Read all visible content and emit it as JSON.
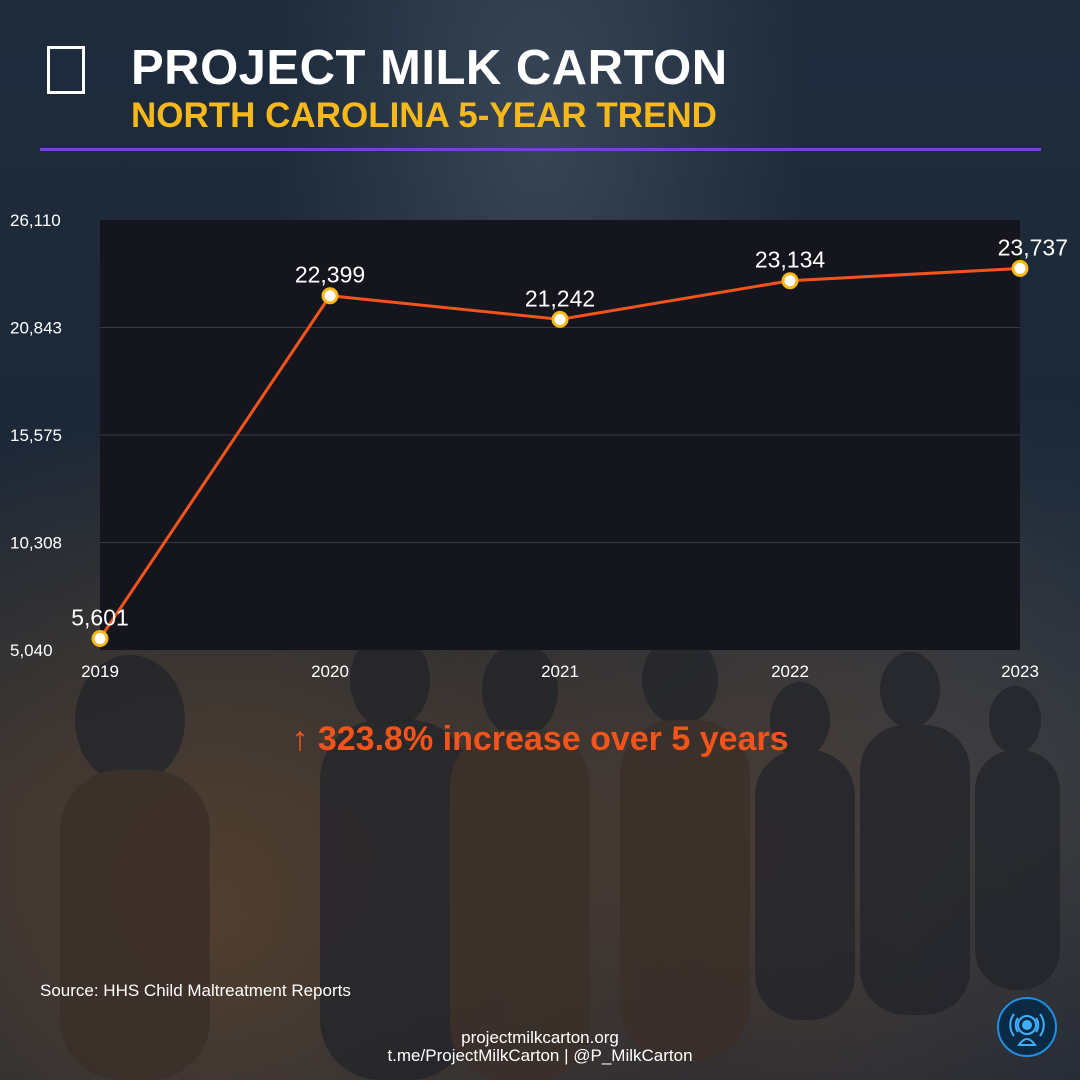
{
  "header": {
    "icon": "milk-carton-icon",
    "title": "PROJECT MILK CARTON",
    "subtitle": "NORTH CAROLINA 5-YEAR TREND"
  },
  "colors": {
    "accent_purple": "#7b3fd6",
    "subtitle_yellow": "#f6b81a",
    "line_orange": "#f2541b",
    "plot_bg": "#15151e"
  },
  "chart_data": {
    "type": "line",
    "categories": [
      "2019",
      "2020",
      "2021",
      "2022",
      "2023"
    ],
    "series": [
      {
        "values": [
          5601,
          22399,
          21242,
          23134,
          23737
        ]
      }
    ],
    "value_labels": [
      "5,601",
      "22,399",
      "21,242",
      "23,134",
      "23,737"
    ],
    "yticks": [
      5040,
      10308,
      15575,
      20843,
      26110
    ],
    "ytick_labels": [
      "5,040",
      "10,308",
      "15,575",
      "20,843",
      "26,110"
    ],
    "ylim": [
      5040,
      26110
    ],
    "grid": true
  },
  "summary": "↑ 323.8% increase over 5 years",
  "source": "Source: HHS Child Maltreatment Reports",
  "footer": {
    "website": "projectmilkcarton.org",
    "social": "t.me/ProjectMilkCarton | @P_MilkCarton"
  },
  "badge": {
    "icon": "broadcast-icon"
  }
}
